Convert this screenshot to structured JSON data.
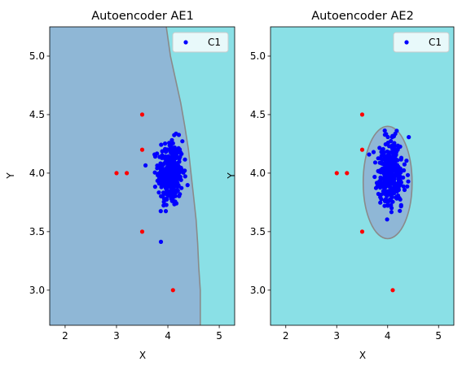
{
  "chart_data": [
    {
      "type": "scatter",
      "title": "Autoencoder AE1",
      "xlabel": "X",
      "ylabel": "Y",
      "xlim": [
        1.7,
        5.3
      ],
      "ylim": [
        2.7,
        5.25
      ],
      "xticks": [
        "2",
        "3",
        "4",
        "5"
      ],
      "yticks": [
        "3.0",
        "3.5",
        "4.0",
        "4.5",
        "5.0"
      ],
      "legend": {
        "placement": "top-right",
        "entries": [
          "C1"
        ]
      },
      "grid": false,
      "background_region_color": "#8ae0e6",
      "decision_region_color": "#8fb7d6",
      "boundary_color": "#8a8a8a",
      "decision_boundary_line": [
        [
          3.97,
          5.25
        ],
        [
          4.05,
          5.0
        ],
        [
          4.15,
          4.8
        ],
        [
          4.25,
          4.6
        ],
        [
          4.33,
          4.4
        ],
        [
          4.4,
          4.2
        ],
        [
          4.45,
          4.0
        ],
        [
          4.5,
          3.8
        ],
        [
          4.55,
          3.6
        ],
        [
          4.58,
          3.4
        ],
        [
          4.6,
          3.2
        ],
        [
          4.63,
          3.0
        ],
        [
          4.63,
          2.7
        ]
      ],
      "series": [
        {
          "name": "C1",
          "color": "#0000ff",
          "cluster_center": [
            4.05,
            4.0
          ],
          "cluster_spread": [
            0.12,
            0.14
          ],
          "point_count": 350
        },
        {
          "color": "#ff0000",
          "points": [
            [
              3.5,
              4.5
            ],
            [
              3.5,
              4.2
            ],
            [
              3.0,
              4.0
            ],
            [
              3.2,
              4.0
            ],
            [
              3.5,
              3.5
            ],
            [
              4.1,
              3.0
            ]
          ]
        }
      ]
    },
    {
      "type": "scatter",
      "title": "Autoencoder AE2",
      "xlabel": "X",
      "ylabel": "Y",
      "xlim": [
        1.7,
        5.3
      ],
      "ylim": [
        2.7,
        5.25
      ],
      "xticks": [
        "2",
        "3",
        "4",
        "5"
      ],
      "yticks": [
        "3.0",
        "3.5",
        "4.0",
        "4.5",
        "5.0"
      ],
      "legend": {
        "placement": "top-right",
        "entries": [
          "C1"
        ]
      },
      "grid": false,
      "background_region_color": "#8ae0e6",
      "decision_region_color": "#8fb7d6",
      "boundary_color": "#8a8a8a",
      "decision_region_ellipse": {
        "center": [
          4.0,
          3.92
        ],
        "rx": 0.48,
        "ry": 0.48
      },
      "series": [
        {
          "name": "C1",
          "color": "#0000ff",
          "cluster_center": [
            4.05,
            4.0
          ],
          "cluster_spread": [
            0.12,
            0.14
          ],
          "point_count": 350
        },
        {
          "color": "#ff0000",
          "points": [
            [
              3.5,
              4.5
            ],
            [
              3.5,
              4.2
            ],
            [
              3.0,
              4.0
            ],
            [
              3.2,
              4.0
            ],
            [
              3.5,
              3.5
            ],
            [
              4.1,
              3.0
            ]
          ]
        }
      ]
    }
  ]
}
